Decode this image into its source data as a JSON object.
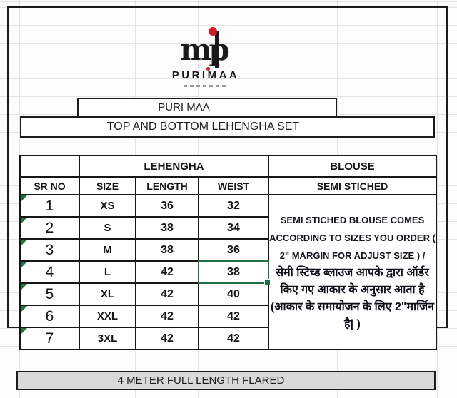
{
  "logo": {
    "monogram": "mp",
    "wordmark": "PURIMAA"
  },
  "header": {
    "brand_row": "PURI MAA",
    "title_row": "TOP AND BOTTOM LEHENGHA SET"
  },
  "size_chart": {
    "group_headers": {
      "lehengha": "LEHENGHA",
      "blouse": "BLOUSE"
    },
    "columns": [
      "SR NO",
      "SIZE",
      "LENGTH",
      "WEIST"
    ],
    "blouse_subheader": "SEMI STICHED",
    "rows": [
      {
        "sr": "1",
        "size": "XS",
        "length": "36",
        "weist": "32"
      },
      {
        "sr": "2",
        "size": "S",
        "length": "38",
        "weist": "34"
      },
      {
        "sr": "3",
        "size": "M",
        "length": "38",
        "weist": "36"
      },
      {
        "sr": "4",
        "size": "L",
        "length": "42",
        "weist": "38"
      },
      {
        "sr": "5",
        "size": "XL",
        "length": "42",
        "weist": "40"
      },
      {
        "sr": "6",
        "size": "XXL",
        "length": "42",
        "weist": "42"
      },
      {
        "sr": "7",
        "size": "3XL",
        "length": "42",
        "weist": "42"
      }
    ],
    "selected_cell": {
      "row": "4",
      "column": "WEIST",
      "value": "38"
    },
    "blouse_note_en": "SEMI STICHED BLOUSE COMES ACCORDING TO SIZES YOU ORDER ( 2\" MARGIN FOR ADJUST SIZE ) /",
    "blouse_note_hi": "सेमी स्टिच्ड ब्लाउज आपके द्वारा ऑर्डर किए गए आकार के अनुसार आता है (आकार के समायोजन के लिए 2\"मार्जिन है| )"
  },
  "footer": {
    "note": "4 METER FULL LENGTH FLARED"
  },
  "colors": {
    "header_cyan": "#29a9e1",
    "group_header_green": "#abc87e",
    "semi_stiched_green": "#00a651",
    "note_bg_blue": "#b4c6e7",
    "footer_gray": "#d9d9d9",
    "selection_green": "#1e7145",
    "flag_triangle_green": "#217346",
    "logo_red": "#d7182a",
    "border_black": "#1c1c1c"
  }
}
